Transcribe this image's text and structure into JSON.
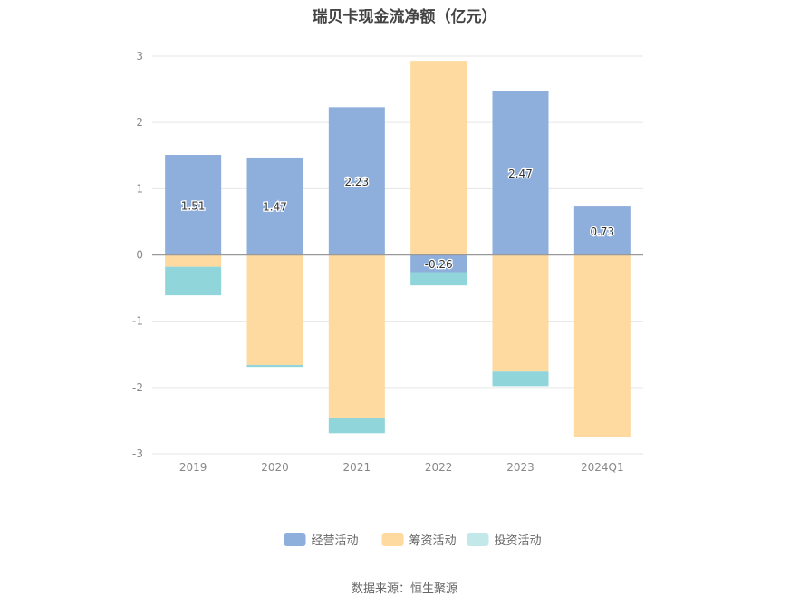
{
  "chart_data": {
    "type": "bar",
    "stacked": true,
    "title": "瑞贝卡现金流净额（亿元）",
    "categories": [
      "2019",
      "2020",
      "2021",
      "2022",
      "2023",
      "2024Q1"
    ],
    "series": [
      {
        "name": "经营活动",
        "color": "#8eaedc",
        "values": [
          1.51,
          1.47,
          2.23,
          -0.26,
          2.47,
          0.73
        ],
        "labels": [
          "1.51",
          "1.47",
          "2.23",
          "-0.26",
          "2.47",
          "0.73"
        ]
      },
      {
        "name": "筹资活动",
        "color": "#fed9a0",
        "values": [
          -0.18,
          -1.66,
          -2.46,
          2.93,
          -1.76,
          -2.74
        ]
      },
      {
        "name": "投资活动",
        "color": "#8fd5d9",
        "values": [
          -0.43,
          -0.03,
          -0.23,
          -0.2,
          -0.22,
          -0.01
        ]
      }
    ],
    "yticks": [
      "3",
      "2",
      "1",
      "0",
      "-1",
      "-2",
      "-3"
    ],
    "ylim": [
      -3,
      3
    ],
    "grid": true,
    "legend_position": "bottom",
    "source": "数据来源：恒生聚源"
  }
}
